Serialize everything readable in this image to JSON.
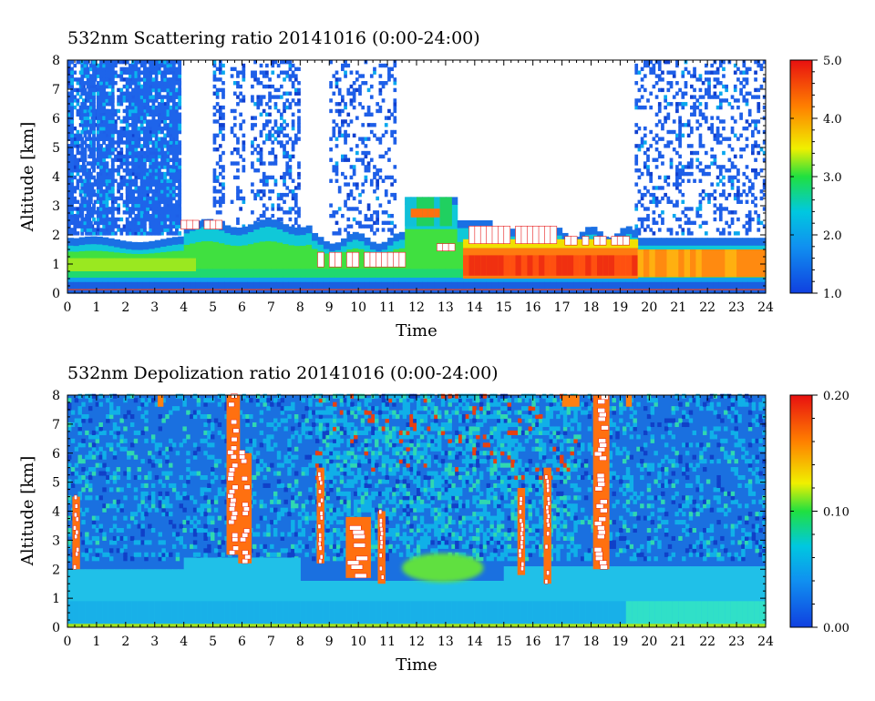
{
  "chart_data": [
    {
      "type": "heatmap",
      "title": "532nm Scattering ratio  20141016 (0:00-24:00)",
      "xlabel": "Time",
      "ylabel": "Altitude [km]",
      "xlim": [
        0,
        24
      ],
      "ylim": [
        0,
        8
      ],
      "x_ticks": [
        0,
        1,
        2,
        3,
        4,
        5,
        6,
        7,
        8,
        9,
        10,
        11,
        12,
        13,
        14,
        15,
        16,
        17,
        18,
        19,
        20,
        21,
        22,
        23,
        24
      ],
      "y_ticks": [
        0,
        1,
        2,
        3,
        4,
        5,
        6,
        7,
        8
      ],
      "colorbar": {
        "range": [
          1.0,
          5.0
        ],
        "ticks": [
          "1.0",
          "2.0",
          "3.0",
          "4.0",
          "5.0"
        ],
        "colors": [
          "#1040e0",
          "#00c8e0",
          "#20e040",
          "#f0f000",
          "#ff8000",
          "#e81010"
        ]
      },
      "features": [
        {
          "desc": "dense aerosol layer",
          "time_range": [
            0,
            24
          ],
          "altitude_range": [
            0.4,
            1.9
          ],
          "value_range": [
            2.0,
            4.5
          ]
        },
        {
          "desc": "strong signal / saturated",
          "time_range": [
            13.5,
            19.5
          ],
          "altitude_range": [
            0.5,
            1.5
          ],
          "value": 5.0
        },
        {
          "desc": "cloud layer",
          "time_range": [
            11.5,
            13.2
          ],
          "altitude_range": [
            2.3,
            3.3
          ],
          "value_range": [
            2.0,
            4.0
          ]
        }
      ]
    },
    {
      "type": "heatmap",
      "title": "532nm Depolization ratio  20141016 (0:00-24:00)",
      "xlabel": "Time",
      "ylabel": "Altitude [km]",
      "xlim": [
        0,
        24
      ],
      "ylim": [
        0,
        8
      ],
      "x_ticks": [
        0,
        1,
        2,
        3,
        4,
        5,
        6,
        7,
        8,
        9,
        10,
        11,
        12,
        13,
        14,
        15,
        16,
        17,
        18,
        19,
        20,
        21,
        22,
        23,
        24
      ],
      "y_ticks": [
        0,
        1,
        2,
        3,
        4,
        5,
        6,
        7,
        8
      ],
      "colorbar": {
        "range": [
          0.0,
          0.2
        ],
        "ticks": [
          "0.00",
          "0.10",
          "0.20"
        ],
        "colors": [
          "#1040e0",
          "#00c8e0",
          "#20e040",
          "#f0f000",
          "#ff8000",
          "#e81010"
        ]
      },
      "features": [
        {
          "desc": "boundary layer",
          "time_range": [
            0,
            24
          ],
          "altitude_range": [
            0.1,
            2.3
          ],
          "value_range": [
            0.03,
            0.07
          ]
        },
        {
          "desc": "high depolarization plumes",
          "times": [
            0.3,
            5.7,
            6.1,
            8.7,
            9.8,
            10.3,
            10.8,
            15.6,
            16.5,
            18.3
          ],
          "altitude_range": [
            1.5,
            8.0
          ],
          "value": 0.2
        },
        {
          "desc": "aerosol layer",
          "time_range": [
            11.5,
            14.2
          ],
          "altitude_range": [
            1.5,
            2.7
          ],
          "value": 0.09
        }
      ]
    }
  ]
}
